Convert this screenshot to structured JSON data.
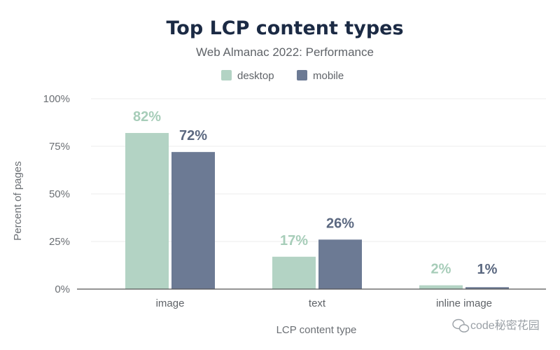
{
  "chart_data": {
    "type": "bar",
    "title": "Top LCP content types",
    "subtitle": "Web Almanac 2022: Performance",
    "xlabel": "LCP content type",
    "ylabel": "Percent of pages",
    "categories": [
      "image",
      "text",
      "inline image"
    ],
    "series": [
      {
        "name": "desktop",
        "values": [
          82,
          17,
          2
        ],
        "labels": [
          "82%",
          "17%",
          "2%"
        ],
        "color": "#b3d3c4",
        "label_color": "#a7cdb9"
      },
      {
        "name": "mobile",
        "values": [
          72,
          26,
          1
        ],
        "labels": [
          "72%",
          "26%",
          "1%"
        ],
        "color": "#6c7a94",
        "label_color": "#5b6880"
      }
    ],
    "ylim": [
      0,
      100
    ],
    "yticks": [
      0,
      25,
      50,
      75,
      100
    ],
    "ytick_labels": [
      "0%",
      "25%",
      "50%",
      "75%",
      "100%"
    ],
    "grid": true,
    "legend_position": "top"
  },
  "watermark": {
    "text": "code秘密花园",
    "icon": "wechat-icon"
  },
  "colors": {
    "title": "#1b2a44",
    "axis": "#555555",
    "grid": "#eeeeee"
  }
}
